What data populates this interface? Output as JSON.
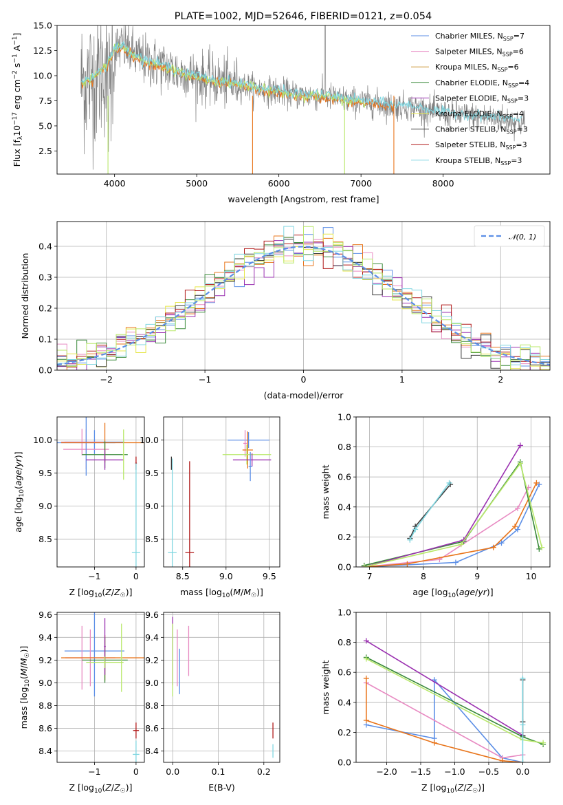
{
  "figure": {
    "title": "PLATE=1002, MJD=52646, FIBERID=0121, z=0.054"
  },
  "model_colors": {
    "Chabrier MILES": "#5b8ee6",
    "Salpeter MILES": "#e88ac2",
    "Kroupa MILES": "#c8902a",
    "Chabrier ELODIE": "#3a8a3a",
    "Salpeter ELODIE": "#9a30b0",
    "Kroupa ELODIE": "#e6e64a",
    "Chabrier STELIB": "#3a3a3a",
    "Salpeter STELIB": "#b01818",
    "Kroupa STELIB": "#7fd6e0",
    "orange": "#e8741a",
    "lime": "#b8e86a",
    "data": "#808080"
  },
  "chart_data": [
    {
      "id": "spectrum",
      "type": "line",
      "xlabel": "wavelength [Angstrom, rest frame]",
      "ylabel": "Flux [f_λ 10^-17 erg cm^-2 s^-1 A^-1]",
      "xlim": [
        3300,
        9300
      ],
      "ylim": [
        0.2,
        15
      ],
      "xticks": [
        4000,
        5000,
        6000,
        7000,
        8000
      ],
      "yticks": [
        2.5,
        5.0,
        7.5,
        10.0,
        12.5,
        15.0
      ],
      "ytick_labels": [
        "2.5",
        "5.0",
        "7.5",
        "10.0",
        "12.5",
        "15.0"
      ],
      "legend_position": "top-right",
      "legend": [
        {
          "name": "Chabrier MILES",
          "sub": "SSP",
          "n": "=7",
          "color": "#5b8ee6"
        },
        {
          "name": "Salpeter MILES",
          "sub": "SSP",
          "n": "=6",
          "color": "#e88ac2"
        },
        {
          "name": "Kroupa MILES",
          "sub": "SSP",
          "n": "=6",
          "color": "#c8902a"
        },
        {
          "name": "Chabrier ELODIE",
          "sub": "SSP",
          "n": "=4",
          "color": "#3a8a3a"
        },
        {
          "name": "Salpeter ELODIE",
          "sub": "SSP",
          "n": "=3",
          "color": "#9a30b0"
        },
        {
          "name": "Kroupa ELODIE",
          "sub": "SSP",
          "n": "=4",
          "color": "#e6e64a"
        },
        {
          "name": "Chabrier STELIB",
          "sub": "SSP",
          "n": "=3",
          "color": "#3a3a3a"
        },
        {
          "name": "Salpeter STELIB",
          "sub": "SSP",
          "n": "=3",
          "color": "#b01818"
        },
        {
          "name": "Kroupa STELIB",
          "sub": "SSP",
          "n": "=3",
          "color": "#7fd6e0"
        }
      ],
      "model_continuum": {
        "x": [
          3600,
          3700,
          3800,
          3900,
          4000,
          4100,
          4200,
          4300,
          4400,
          4500,
          4600,
          4700,
          4800,
          4900,
          5000,
          5200,
          5400,
          5600,
          5800,
          6000,
          6200,
          6400,
          6600,
          6800,
          7000,
          7200,
          7400,
          7600,
          7800,
          8000,
          8200,
          8400,
          8600,
          8800,
          9000
        ],
        "y": [
          9.3,
          9.6,
          10.2,
          11.0,
          12.6,
          12.9,
          12.3,
          11.7,
          11.4,
          11.2,
          10.9,
          10.6,
          10.3,
          10.0,
          9.9,
          9.5,
          9.3,
          9.0,
          8.6,
          8.4,
          8.1,
          8.0,
          7.9,
          7.6,
          7.4,
          7.2,
          7.0,
          6.9,
          6.6,
          6.2,
          6.1,
          5.9,
          5.8,
          5.6,
          5.2
        ]
      }
    },
    {
      "id": "residuals",
      "type": "line",
      "xlabel": "(data-model)/error",
      "ylabel": "Normed distribution",
      "xlim": [
        -2.5,
        2.5
      ],
      "ylim": [
        0,
        0.48
      ],
      "xticks": [
        -2,
        -1,
        0,
        1,
        2
      ],
      "xtick_labels": [
        "−2",
        "−1",
        "0",
        "1",
        "2"
      ],
      "yticks": [
        0.0,
        0.1,
        0.2,
        0.3,
        0.4
      ],
      "ytick_labels": [
        "0.0",
        "0.1",
        "0.2",
        "0.3",
        "0.4"
      ],
      "grid": true,
      "legend_position": "top-right",
      "legend": [
        {
          "name": "𝒩(0, 1)",
          "color": "#5b8ee6",
          "style": "dashed"
        }
      ],
      "bin_width": 0.1
    },
    {
      "id": "age_vs_Z",
      "type": "scatter",
      "xlabel": "Z [log10(Z/Z☉)]",
      "ylabel": "age [log10(age/yr)]",
      "xlim": [
        -1.9,
        0.2
      ],
      "ylim": [
        8.08,
        10.35
      ],
      "xticks": [
        -1,
        0
      ],
      "xtick_labels": [
        "−1",
        "0"
      ],
      "yticks": [
        8.5,
        9.0,
        9.5,
        10.0
      ],
      "ytick_labels": [
        "8.5",
        "9.0",
        "9.5",
        "10.0"
      ],
      "grid": true,
      "points": [
        {
          "x": -1.0,
          "y": 9.97,
          "xerr": 0.72,
          "yerr": 0.18,
          "color": "#5b8ee6"
        },
        {
          "x": -1.3,
          "y": 9.97,
          "xerr": 0.5,
          "yerr": 0.2,
          "color": "#e88ac2"
        },
        {
          "x": -1.2,
          "y": 9.86,
          "xerr": 0.55,
          "yerr": 0.3,
          "color": "#e88ac2"
        },
        {
          "x": -1.2,
          "y": 9.96,
          "xerr": 0.7,
          "yerr": 0.5,
          "color": "#5b8ee6"
        },
        {
          "x": -0.75,
          "y": 9.96,
          "xerr": 1.05,
          "yerr": 0.3,
          "color": "#e8741a"
        },
        {
          "x": -0.75,
          "y": 9.78,
          "xerr": 0.55,
          "yerr": 0.2,
          "color": "#3a8a3a"
        },
        {
          "x": -0.75,
          "y": 9.7,
          "xerr": 0.45,
          "yerr": 0.15,
          "color": "#9a30b0"
        },
        {
          "x": -0.3,
          "y": 9.78,
          "xerr": 0.02,
          "yerr": 0.38,
          "color": "#b8e86a"
        },
        {
          "x": 0.0,
          "y": 9.65,
          "xerr": 0.02,
          "yerr": 0.1,
          "color": "#b01818"
        },
        {
          "x": 0.0,
          "y": 8.3,
          "xerr": 0.1,
          "yerr": 1.35,
          "color": "#7fd6e0"
        }
      ]
    },
    {
      "id": "age_vs_mass",
      "type": "scatter",
      "xlabel": "mass [log10(M/M☉)]",
      "ylabel": "",
      "xlim": [
        8.28,
        9.62
      ],
      "ylim": [
        8.08,
        10.35
      ],
      "xticks": [
        8.5,
        9.0,
        9.5
      ],
      "xtick_labels": [
        "8.5",
        "9.0",
        "9.5"
      ],
      "yticks": [
        8.5,
        9.0,
        9.5,
        10.0
      ],
      "ytick_labels": [
        "8.5",
        "9.0",
        "9.5",
        "10.0"
      ],
      "grid": true,
      "points": [
        {
          "x": 9.26,
          "y": 10.0,
          "xerr": 0.24,
          "yerr": 0.12,
          "color": "#5b8ee6"
        },
        {
          "x": 9.22,
          "y": 9.95,
          "xerr": 0.02,
          "yerr": 0.2,
          "color": "#e88ac2"
        },
        {
          "x": 9.25,
          "y": 9.85,
          "xerr": 0.06,
          "yerr": 0.28,
          "color": "#e8741a"
        },
        {
          "x": 9.24,
          "y": 9.78,
          "xerr": 0.28,
          "yerr": 0.15,
          "color": "#b8e86a"
        },
        {
          "x": 9.3,
          "y": 9.7,
          "xerr": 0.22,
          "yerr": 0.1,
          "color": "#9a30b0"
        },
        {
          "x": 9.28,
          "y": 9.6,
          "xerr": 0.02,
          "yerr": 0.22,
          "color": "#5b8ee6"
        },
        {
          "x": 8.58,
          "y": 8.3,
          "xerr": 0.05,
          "yerr": 1.38,
          "color": "#b01818"
        },
        {
          "x": 8.38,
          "y": 8.3,
          "xerr": 0.05,
          "yerr": 1.42,
          "color": "#7fd6e0"
        },
        {
          "x": 8.37,
          "y": 9.65,
          "xerr": 0.0,
          "yerr": 0.1,
          "color": "#3a3a3a"
        }
      ]
    },
    {
      "id": "massweight_vs_age",
      "type": "line",
      "xlabel": "age [log10(age/yr)]",
      "ylabel": "mass weight",
      "xlim": [
        6.75,
        10.35
      ],
      "ylim": [
        0,
        1.0
      ],
      "xticks": [
        7,
        8,
        9,
        10
      ],
      "xtick_labels": [
        "7",
        "8",
        "9",
        "10"
      ],
      "yticks": [
        0.0,
        0.2,
        0.4,
        0.6,
        0.8,
        1.0
      ],
      "ytick_labels": [
        "0.0",
        "0.2",
        "0.4",
        "0.6",
        "0.8",
        "1.0"
      ],
      "grid": true,
      "series": [
        {
          "color": "#5b8ee6",
          "x": [
            6.9,
            8.6,
            9.45,
            9.75,
            10.15
          ],
          "y": [
            0.0,
            0.03,
            0.16,
            0.25,
            0.55
          ]
        },
        {
          "color": "#e88ac2",
          "x": [
            6.9,
            8.3,
            9.75,
            9.95
          ],
          "y": [
            0.0,
            0.05,
            0.39,
            0.53
          ]
        },
        {
          "color": "#e8741a",
          "x": [
            6.9,
            7.7,
            9.3,
            9.7,
            10.1
          ],
          "y": [
            0.0,
            0.02,
            0.13,
            0.27,
            0.56
          ]
        },
        {
          "color": "#3a8a3a",
          "x": [
            6.9,
            8.75,
            9.8,
            10.15
          ],
          "y": [
            0.01,
            0.17,
            0.7,
            0.12
          ]
        },
        {
          "color": "#9a30b0",
          "x": [
            6.9,
            8.75,
            9.8
          ],
          "y": [
            0.0,
            0.18,
            0.81
          ]
        },
        {
          "color": "#b8e86a",
          "x": [
            6.9,
            8.7,
            9.8,
            10.2
          ],
          "y": [
            0.0,
            0.15,
            0.69,
            0.13
          ]
        },
        {
          "color": "#3a3a3a",
          "x": [
            7.75,
            7.85,
            8.5
          ],
          "y": [
            0.19,
            0.27,
            0.55
          ]
        },
        {
          "color": "#7fd6e0",
          "x": [
            7.75,
            7.85,
            8.48
          ],
          "y": [
            0.18,
            0.25,
            0.56
          ]
        }
      ]
    },
    {
      "id": "mass_vs_Z",
      "type": "scatter",
      "xlabel": "Z [log10(Z/Z☉)]",
      "ylabel": "mass [log10(M/M☉)]",
      "xlim": [
        -1.9,
        0.2
      ],
      "ylim": [
        8.3,
        9.62
      ],
      "xticks": [
        -1,
        0
      ],
      "xtick_labels": [
        "−1",
        "0"
      ],
      "yticks": [
        8.4,
        8.6,
        8.8,
        9.0,
        9.2,
        9.4,
        9.6
      ],
      "ytick_labels": [
        "8.4",
        "8.6",
        "8.8",
        "9.0",
        "9.2",
        "9.4",
        "9.6"
      ],
      "grid": true,
      "points": [
        {
          "x": -1.0,
          "y": 9.28,
          "xerr": 0.72,
          "yerr": 0.4,
          "color": "#5b8ee6"
        },
        {
          "x": -1.3,
          "y": 9.22,
          "xerr": 0.02,
          "yerr": 0.28,
          "color": "#e88ac2"
        },
        {
          "x": -1.1,
          "y": 9.22,
          "xerr": 0.6,
          "yerr": 0.25,
          "color": "#e88ac2"
        },
        {
          "x": -0.75,
          "y": 9.22,
          "xerr": 1.05,
          "yerr": 0.2,
          "color": "#e8741a"
        },
        {
          "x": -0.75,
          "y": 9.2,
          "xerr": 0.55,
          "yerr": 0.2,
          "color": "#3a8a3a"
        },
        {
          "x": -0.75,
          "y": 9.32,
          "xerr": 0.02,
          "yerr": 0.25,
          "color": "#9a30b0"
        },
        {
          "x": -0.75,
          "y": 9.18,
          "xerr": 0.45,
          "yerr": 0.05,
          "color": "#b8e86a"
        },
        {
          "x": -0.35,
          "y": 9.22,
          "xerr": 0.02,
          "yerr": 0.3,
          "color": "#b8e86a"
        },
        {
          "x": 0.0,
          "y": 8.58,
          "xerr": 0.07,
          "yerr": 0.07,
          "color": "#b01818"
        },
        {
          "x": 0.0,
          "y": 8.37,
          "xerr": 0.08,
          "yerr": 0.12,
          "color": "#7fd6e0"
        }
      ]
    },
    {
      "id": "mass_vs_ebv",
      "type": "scatter",
      "xlabel": "E(B-V)",
      "ylabel": "",
      "xlim": [
        -0.02,
        0.235
      ],
      "ylim": [
        8.3,
        9.62
      ],
      "xticks": [
        0.0,
        0.1,
        0.2
      ],
      "xtick_labels": [
        "0.0",
        "0.1",
        "0.2"
      ],
      "yticks": [
        8.4,
        8.6,
        8.8,
        9.0,
        9.2,
        9.4,
        9.6
      ],
      "ytick_labels": [
        "8.4",
        "8.6",
        "8.8",
        "9.0",
        "9.2",
        "9.4",
        "9.6"
      ],
      "grid": true,
      "points": [
        {
          "x": 0.0,
          "y": 9.28,
          "xerr": 0.0,
          "yerr": 0.3,
          "color": "#9a30b0"
        },
        {
          "x": 0.0,
          "y": 9.2,
          "xerr": 0.0,
          "yerr": 0.32,
          "color": "#b8e86a"
        },
        {
          "x": 0.01,
          "y": 9.22,
          "xerr": 0.0,
          "yerr": 0.25,
          "color": "#e88ac2"
        },
        {
          "x": 0.015,
          "y": 9.1,
          "xerr": 0.0,
          "yerr": 0.2,
          "color": "#5b8ee6"
        },
        {
          "x": 0.035,
          "y": 9.28,
          "xerr": 0.0,
          "yerr": 0.22,
          "color": "#e88ac2"
        },
        {
          "x": 0.22,
          "y": 8.58,
          "xerr": 0.0,
          "yerr": 0.07,
          "color": "#b01818"
        },
        {
          "x": 0.22,
          "y": 8.4,
          "xerr": 0.0,
          "yerr": 0.06,
          "color": "#7fd6e0"
        }
      ]
    },
    {
      "id": "massweight_vs_Z",
      "type": "line",
      "xlabel": "Z [log10(Z/Z☉)]",
      "ylabel": "mass weight",
      "xlim": [
        -2.45,
        0.4
      ],
      "ylim": [
        0,
        1.0
      ],
      "xticks": [
        -2.0,
        -1.5,
        -1.0,
        -0.5,
        0.0
      ],
      "xtick_labels": [
        "−2.0",
        "−1.5",
        "−1.0",
        "−0.5",
        "0.0"
      ],
      "yticks": [
        0.0,
        0.2,
        0.4,
        0.6,
        0.8,
        1.0
      ],
      "ytick_labels": [
        "0.0",
        "0.2",
        "0.4",
        "0.6",
        "0.8",
        "1.0"
      ],
      "grid": true,
      "series": [
        {
          "color": "#5b8ee6",
          "x": [
            -2.3,
            -1.3,
            -1.3,
            -0.3,
            0.0
          ],
          "y": [
            0.25,
            0.16,
            0.55,
            0.03,
            0.0
          ]
        },
        {
          "color": "#e88ac2",
          "x": [
            -2.3,
            -0.3,
            0.0
          ],
          "y": [
            0.53,
            0.03,
            0.05
          ]
        },
        {
          "color": "#e8741a",
          "x": [
            -2.3,
            -2.3,
            -1.3,
            -0.3,
            0.0
          ],
          "y": [
            0.56,
            0.28,
            0.13,
            0.01,
            0.0
          ]
        },
        {
          "color": "#3a8a3a",
          "x": [
            -2.3,
            0.0,
            0.3
          ],
          "y": [
            0.7,
            0.17,
            0.12
          ]
        },
        {
          "color": "#9a30b0",
          "x": [
            -2.3,
            0.0
          ],
          "y": [
            0.81,
            0.18
          ]
        },
        {
          "color": "#b8e86a",
          "x": [
            -2.3,
            0.0,
            0.3
          ],
          "y": [
            0.69,
            0.15,
            0.13
          ]
        },
        {
          "color": "#3a3a3a",
          "x": [
            0.0,
            0.0,
            0.0
          ],
          "y": [
            0.55,
            0.27,
            0.18
          ]
        },
        {
          "color": "#7fd6e0",
          "x": [
            0.0,
            0.0,
            0.0
          ],
          "y": [
            0.56,
            0.25,
            0.0
          ]
        }
      ]
    }
  ]
}
